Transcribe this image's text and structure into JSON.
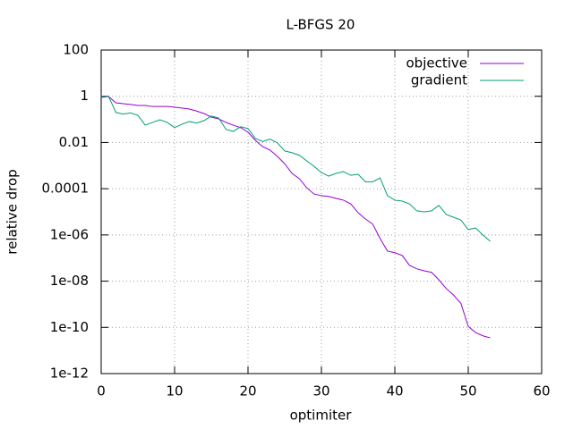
{
  "chart_data": {
    "type": "line",
    "title": "L-BFGS 20",
    "x_label": "optimiter",
    "y_label": "relative drop",
    "x": [
      0,
      1,
      2,
      3,
      4,
      5,
      6,
      7,
      8,
      9,
      10,
      11,
      12,
      13,
      14,
      15,
      16,
      17,
      18,
      19,
      20,
      21,
      22,
      23,
      24,
      25,
      26,
      27,
      28,
      29,
      30,
      31,
      32,
      33,
      34,
      35,
      36,
      37,
      38,
      39,
      40,
      41,
      42,
      43,
      44,
      45,
      46,
      47,
      48,
      49,
      50,
      51,
      52,
      53
    ],
    "series": [
      {
        "name": "objective",
        "color": "#9400d3",
        "values": [
          0.89,
          0.98,
          0.52,
          0.48,
          0.44,
          0.4,
          0.4,
          0.36,
          0.36,
          0.36,
          0.34,
          0.31,
          0.28,
          0.23,
          0.18,
          0.126,
          0.105,
          0.074,
          0.056,
          0.044,
          0.028,
          0.0124,
          0.0066,
          0.0047,
          0.0025,
          0.0012,
          0.00046,
          0.00027,
          0.00011,
          5.9e-05,
          5e-05,
          4.6e-05,
          3.8e-05,
          3.2e-05,
          2.2e-05,
          9.1e-06,
          4.9e-06,
          2.9e-06,
          6.9e-07,
          2e-07,
          1.7e-07,
          1.3e-07,
          4.8e-08,
          3.4e-08,
          2.8e-08,
          2.4e-08,
          1.15e-08,
          4.8e-09,
          2.5e-09,
          1.1e-09,
          1.1e-10,
          6e-11,
          4.3e-11,
          3.5e-11
        ]
      },
      {
        "name": "gradient",
        "color": "#009e73",
        "values": [
          1.0,
          1.0,
          0.2,
          0.17,
          0.19,
          0.15,
          0.056,
          0.074,
          0.096,
          0.074,
          0.044,
          0.062,
          0.08,
          0.07,
          0.088,
          0.14,
          0.115,
          0.037,
          0.03,
          0.048,
          0.04,
          0.015,
          0.011,
          0.014,
          0.0097,
          0.0043,
          0.0036,
          0.0028,
          0.0016,
          0.00093,
          0.0005,
          0.00035,
          0.00046,
          0.00055,
          0.00038,
          0.00042,
          0.0002,
          0.0002,
          0.00029,
          5e-05,
          3.2e-05,
          2.9e-05,
          2.2e-05,
          1.1e-05,
          1e-05,
          1.1e-05,
          1.9e-05,
          7.7e-06,
          5.8e-06,
          4.4e-06,
          1.7e-06,
          2e-06,
          9.9e-07,
          5.3e-07
        ]
      }
    ],
    "xlim": [
      0,
      60
    ],
    "xticks": [
      0,
      10,
      20,
      30,
      40,
      50,
      60
    ],
    "ylim": [
      1e-12,
      100
    ],
    "log_y": true,
    "yticks": [
      100,
      1,
      0.01,
      0.0001,
      {
        "value": 1e-06,
        "label": "1e-06"
      },
      {
        "value": 1e-08,
        "label": "1e-08"
      },
      {
        "value": 1e-10,
        "label": "1e-10"
      },
      {
        "value": 1e-12,
        "label": "1e-12"
      }
    ],
    "grid": true,
    "legend": "top-right"
  }
}
